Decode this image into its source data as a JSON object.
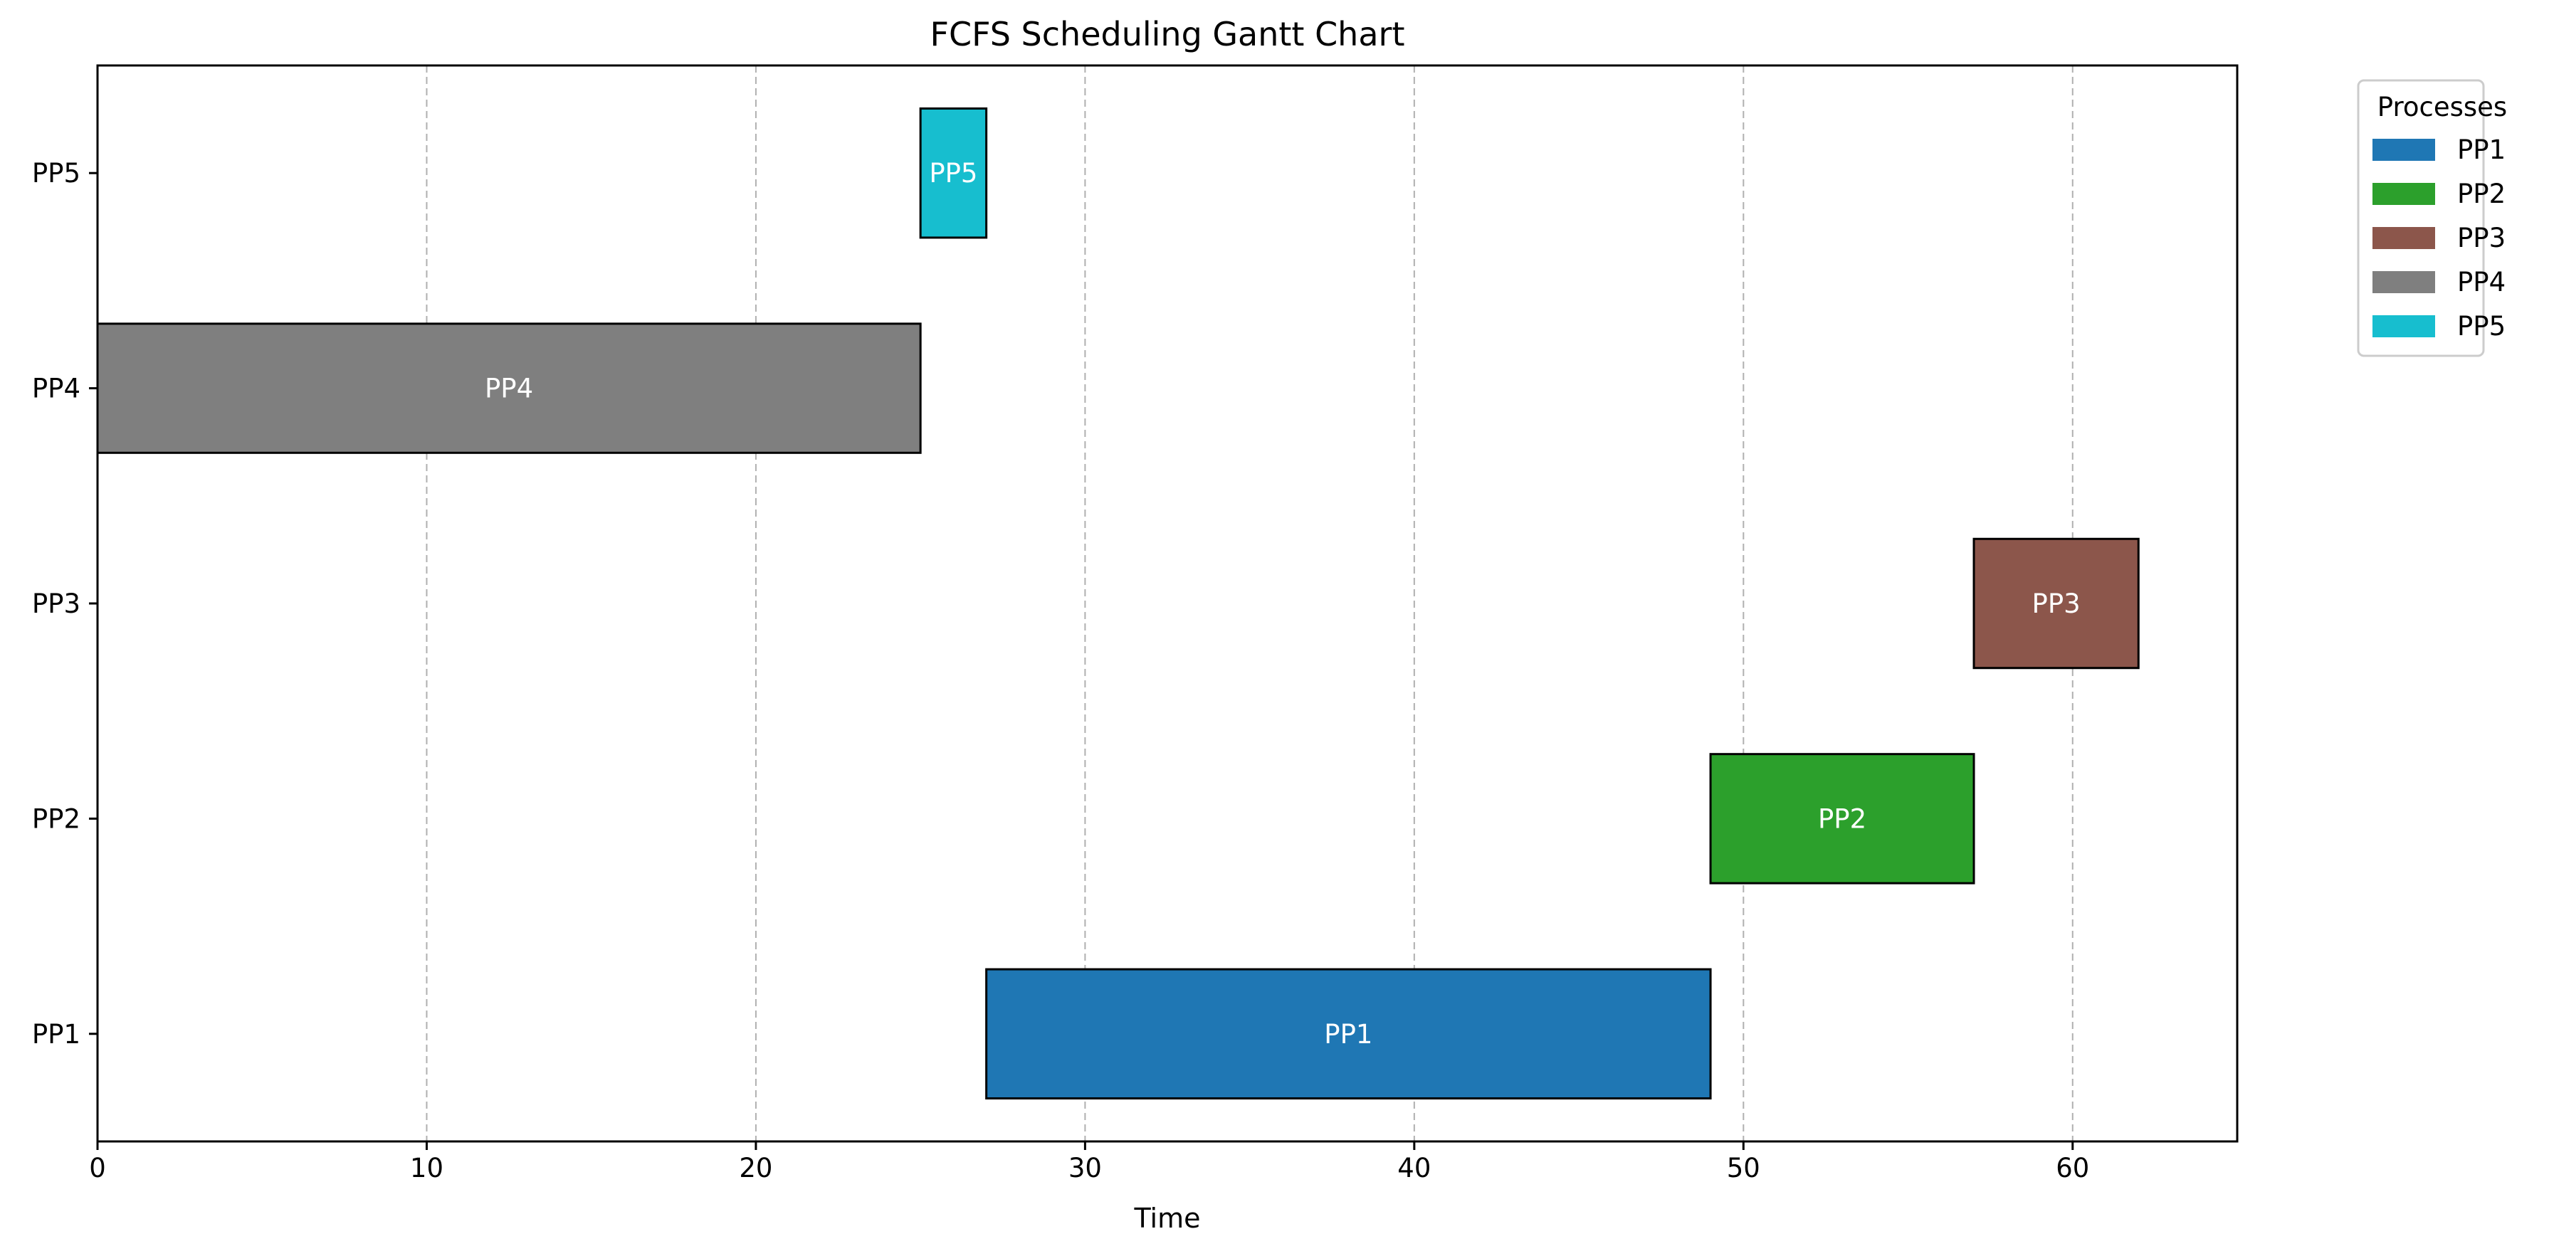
{
  "chart_data": {
    "type": "gantt",
    "title": "FCFS Scheduling Gantt Chart",
    "xlabel": "Time",
    "ylabel": "",
    "xlim": [
      0,
      65
    ],
    "xticks": [
      0,
      10,
      20,
      30,
      40,
      50,
      60
    ],
    "grid": {
      "x": true,
      "y": false,
      "style": "dashed"
    },
    "categories": [
      "PP1",
      "PP2",
      "PP3",
      "PP4",
      "PP5"
    ],
    "tasks": [
      {
        "name": "PP1",
        "start": 27,
        "end": 49,
        "color": "#1f77b4",
        "label": "PP1"
      },
      {
        "name": "PP2",
        "start": 49,
        "end": 57,
        "color": "#2ca02c",
        "label": "PP2"
      },
      {
        "name": "PP3",
        "start": 57,
        "end": 62,
        "color": "#8c564b",
        "label": "PP3"
      },
      {
        "name": "PP4",
        "start": 0,
        "end": 25,
        "color": "#7f7f7f",
        "label": "PP4"
      },
      {
        "name": "PP5",
        "start": 25,
        "end": 27,
        "color": "#17becf",
        "label": "PP5"
      }
    ],
    "legend": {
      "title": "Processes",
      "placement": "outside-top-right",
      "entries": [
        {
          "label": "PP1",
          "color": "#1f77b4"
        },
        {
          "label": "PP2",
          "color": "#2ca02c"
        },
        {
          "label": "PP3",
          "color": "#8c564b"
        },
        {
          "label": "PP4",
          "color": "#7f7f7f"
        },
        {
          "label": "PP5",
          "color": "#17becf"
        }
      ]
    }
  }
}
